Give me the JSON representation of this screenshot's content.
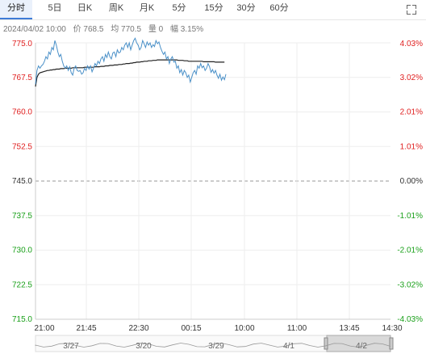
{
  "tabs": [
    {
      "label": "分时",
      "active": true
    },
    {
      "label": "5日",
      "active": false
    },
    {
      "label": "日K",
      "active": false
    },
    {
      "label": "周K",
      "active": false
    },
    {
      "label": "月K",
      "active": false
    },
    {
      "label": "5分",
      "active": false
    },
    {
      "label": "15分",
      "active": false
    },
    {
      "label": "30分",
      "active": false
    },
    {
      "label": "60分",
      "active": false
    }
  ],
  "fullscreen_icon": "fullscreen-icon",
  "info": {
    "datetime": "2024/04/02 10:00",
    "price_label": "价 768.5",
    "avg_label": "均 770.5",
    "volume_label": "量 0",
    "change_label": "幅 3.15%"
  },
  "colors": {
    "up": "#e02020",
    "down": "#1aa01a",
    "neutral": "#333333",
    "price_line": "#4a90c8",
    "avg_line": "#222222",
    "grid": "#eeeeee"
  },
  "chart_data": {
    "type": "line",
    "prev_close": 745.0,
    "ylim": [
      715.0,
      775.0
    ],
    "y_ticks": [
      "775.0",
      "767.5",
      "760.0",
      "752.5",
      "745.0",
      "737.5",
      "730.0",
      "722.5",
      "715.0"
    ],
    "pct_ticks": [
      "4.03%",
      "3.02%",
      "2.01%",
      "1.01%",
      "0.00%",
      "-1.01%",
      "-2.01%",
      "-3.02%",
      "-4.03%"
    ],
    "x_ticks": [
      "21:00",
      "21:45",
      "22:30",
      "00:15",
      "10:00",
      "11:00",
      "13:45",
      "14:30"
    ],
    "navigator_dates": [
      "3/27",
      "3/20",
      "3/29",
      "4/1",
      "4/2"
    ],
    "series": [
      {
        "values": [
          766,
          769,
          770,
          769.5,
          770,
          770.3,
          771,
          772,
          771.5,
          773,
          772.5,
          774,
          773.5,
          775.5,
          774.5,
          773,
          772,
          772.5,
          771,
          770,
          769.5,
          770,
          769,
          769.8,
          768.5,
          768,
          769.5,
          770,
          769,
          768.8,
          769,
          768.2,
          768.5,
          769.5,
          769,
          770,
          769.3,
          770,
          768.7,
          769.5,
          770.5,
          770,
          771,
          770.5,
          771.5,
          772,
          771,
          772.5,
          771.8,
          773,
          772,
          771.5,
          772.8,
          773,
          772,
          773.5,
          772.8,
          773,
          774,
          773.5,
          774.5,
          775,
          774,
          775,
          773.5,
          774.5,
          775.5,
          776,
          775,
          774.5,
          773.5,
          774,
          775.5,
          774.8,
          774,
          775.2,
          774.5,
          775,
          774,
          774.6,
          774.2,
          775.5,
          774.8,
          775.2,
          774,
          773.2,
          772.5,
          773,
          771.5,
          772,
          770.5,
          771.5,
          772,
          770.8,
          771,
          769.5,
          770,
          768.5,
          769.2,
          768,
          769,
          768.5,
          767.5,
          768,
          766.5,
          767.5,
          768.5,
          769,
          768.2,
          770,
          769.5,
          770.5,
          769.6,
          770,
          769,
          769.5,
          770.5,
          769.8,
          768.6,
          769.2,
          768.4,
          769,
          768,
          767.3,
          768.2,
          766.9,
          767.6,
          767,
          768.2
        ],
        "avg": [
          765.5,
          767.5,
          768.2,
          768.5,
          768.6,
          768.7,
          768.8,
          768.9,
          769.0,
          769.0,
          769.1,
          769.1,
          769.2,
          769.2,
          769.3,
          769.3,
          769.3,
          769.4,
          769.4,
          769.4,
          769.5,
          769.5,
          769.5,
          769.5,
          769.5,
          769.6,
          769.6,
          769.6,
          769.6,
          769.6,
          769.6,
          769.6,
          769.6,
          769.7,
          769.7,
          769.7,
          769.7,
          769.7,
          769.7,
          769.7,
          769.8,
          769.8,
          769.8,
          769.8,
          769.9,
          769.9,
          769.9,
          770.0,
          770.0,
          770.0,
          770.1,
          770.1,
          770.1,
          770.2,
          770.2,
          770.2,
          770.3,
          770.3,
          770.3,
          770.4,
          770.4,
          770.5,
          770.5,
          770.5,
          770.6,
          770.6,
          770.7,
          770.7,
          770.8,
          770.8,
          770.8,
          770.9,
          770.9,
          771.0,
          771.0,
          771.0,
          771.1,
          771.1,
          771.1,
          771.2,
          771.2,
          771.2,
          771.3,
          771.3,
          771.3,
          771.3,
          771.3,
          771.3,
          771.3,
          771.3,
          771.3,
          771.3,
          771.3,
          771.3,
          771.3,
          771.3,
          771.2,
          771.2,
          771.2,
          771.2,
          771.1,
          771.1,
          771.1,
          771.0,
          771.0,
          771.0,
          771.0,
          771.0,
          771.0,
          771.0,
          771.0,
          771.0,
          771.0,
          770.9,
          770.9,
          770.9,
          770.9,
          770.9,
          770.9,
          770.9,
          770.9,
          770.8,
          770.8,
          770.8,
          770.8,
          770.8,
          770.8,
          770.8
        ]
      }
    ]
  }
}
